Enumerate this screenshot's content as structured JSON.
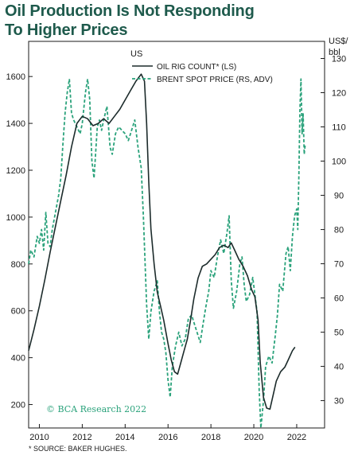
{
  "title_line1": "Oil Production Is Not Responding",
  "title_line2": "To Higher Prices",
  "credit": "© BCA Research 2022",
  "source": "* SOURCE: BAKER HUGHES.",
  "colors": {
    "rig": "#1c2b2b",
    "brent": "#2aa27b",
    "title": "#1e5a4c"
  },
  "chart_data": {
    "type": "line",
    "left_axis": {
      "label": "US",
      "ylim": [
        100,
        1750
      ],
      "ticks": [
        200,
        400,
        600,
        800,
        1000,
        1200,
        1400,
        1600
      ]
    },
    "right_axis": {
      "label": "US$/\nbbl",
      "ylim": [
        22,
        135
      ],
      "ticks": [
        30,
        40,
        50,
        60,
        70,
        80,
        90,
        100,
        110,
        120,
        130
      ]
    },
    "x_axis": {
      "range": [
        2009.5,
        2023.3
      ],
      "ticks": [
        "2010",
        "2012",
        "2014",
        "2016",
        "2018",
        "2020",
        "2022"
      ]
    },
    "grid": false,
    "legend_position": "top",
    "series": [
      {
        "name": "OIL RIG COUNT* (LS)",
        "axis": "left",
        "style": "solid",
        "points": [
          [
            2009.5,
            430
          ],
          [
            2009.75,
            520
          ],
          [
            2010.0,
            620
          ],
          [
            2010.25,
            730
          ],
          [
            2010.5,
            850
          ],
          [
            2010.75,
            960
          ],
          [
            2011.0,
            1070
          ],
          [
            2011.25,
            1180
          ],
          [
            2011.5,
            1300
          ],
          [
            2011.75,
            1400
          ],
          [
            2012.0,
            1430
          ],
          [
            2012.25,
            1420
          ],
          [
            2012.5,
            1390
          ],
          [
            2012.75,
            1400
          ],
          [
            2013.0,
            1420
          ],
          [
            2013.25,
            1400
          ],
          [
            2013.5,
            1430
          ],
          [
            2013.75,
            1460
          ],
          [
            2014.0,
            1500
          ],
          [
            2014.25,
            1540
          ],
          [
            2014.5,
            1580
          ],
          [
            2014.75,
            1610
          ],
          [
            2014.9,
            1580
          ],
          [
            2015.0,
            1400
          ],
          [
            2015.1,
            1150
          ],
          [
            2015.2,
            950
          ],
          [
            2015.35,
            800
          ],
          [
            2015.5,
            680
          ],
          [
            2015.65,
            620
          ],
          [
            2015.8,
            560
          ],
          [
            2015.9,
            510
          ],
          [
            2016.0,
            460
          ],
          [
            2016.15,
            390
          ],
          [
            2016.3,
            340
          ],
          [
            2016.45,
            330
          ],
          [
            2016.6,
            380
          ],
          [
            2016.75,
            430
          ],
          [
            2016.9,
            480
          ],
          [
            2017.05,
            560
          ],
          [
            2017.2,
            650
          ],
          [
            2017.4,
            740
          ],
          [
            2017.6,
            790
          ],
          [
            2017.8,
            800
          ],
          [
            2018.0,
            820
          ],
          [
            2018.2,
            840
          ],
          [
            2018.4,
            870
          ],
          [
            2018.6,
            880
          ],
          [
            2018.8,
            870
          ],
          [
            2018.95,
            890
          ],
          [
            2019.1,
            860
          ],
          [
            2019.3,
            820
          ],
          [
            2019.5,
            790
          ],
          [
            2019.7,
            750
          ],
          [
            2019.9,
            690
          ],
          [
            2020.05,
            660
          ],
          [
            2020.2,
            560
          ],
          [
            2020.3,
            380
          ],
          [
            2020.45,
            230
          ],
          [
            2020.6,
            185
          ],
          [
            2020.75,
            180
          ],
          [
            2020.9,
            240
          ],
          [
            2021.05,
            300
          ],
          [
            2021.25,
            340
          ],
          [
            2021.45,
            360
          ],
          [
            2021.6,
            390
          ],
          [
            2021.8,
            430
          ],
          [
            2021.92,
            445
          ]
        ]
      },
      {
        "name": "BRENT SPOT PRICE (RS, ADV)",
        "axis": "right",
        "style": "dashed",
        "points": [
          [
            2009.5,
            70
          ],
          [
            2009.6,
            74
          ],
          [
            2009.75,
            72
          ],
          [
            2009.9,
            78
          ],
          [
            2010.0,
            76
          ],
          [
            2010.1,
            80
          ],
          [
            2010.2,
            74
          ],
          [
            2010.3,
            85
          ],
          [
            2010.4,
            76
          ],
          [
            2010.5,
            75
          ],
          [
            2010.6,
            80
          ],
          [
            2010.75,
            85
          ],
          [
            2010.9,
            90
          ],
          [
            2011.0,
            95
          ],
          [
            2011.1,
            105
          ],
          [
            2011.2,
            114
          ],
          [
            2011.3,
            120
          ],
          [
            2011.4,
            124
          ],
          [
            2011.5,
            114
          ],
          [
            2011.6,
            112
          ],
          [
            2011.75,
            110
          ],
          [
            2011.9,
            108
          ],
          [
            2012.0,
            111
          ],
          [
            2012.15,
            120
          ],
          [
            2012.25,
            124
          ],
          [
            2012.35,
            118
          ],
          [
            2012.45,
            100
          ],
          [
            2012.55,
            95
          ],
          [
            2012.7,
            110
          ],
          [
            2012.8,
            112
          ],
          [
            2012.9,
            109
          ],
          [
            2013.0,
            112
          ],
          [
            2013.15,
            116
          ],
          [
            2013.3,
            104
          ],
          [
            2013.4,
            102
          ],
          [
            2013.55,
            108
          ],
          [
            2013.7,
            110
          ],
          [
            2013.85,
            109
          ],
          [
            2014.0,
            108
          ],
          [
            2014.15,
            106
          ],
          [
            2014.3,
            109
          ],
          [
            2014.45,
            112
          ],
          [
            2014.6,
            104
          ],
          [
            2014.75,
            98
          ],
          [
            2014.85,
            84
          ],
          [
            2015.0,
            58
          ],
          [
            2015.1,
            48
          ],
          [
            2015.2,
            56
          ],
          [
            2015.35,
            62
          ],
          [
            2015.5,
            65
          ],
          [
            2015.6,
            56
          ],
          [
            2015.7,
            50
          ],
          [
            2015.8,
            48
          ],
          [
            2015.9,
            44
          ],
          [
            2016.0,
            36
          ],
          [
            2016.1,
            31
          ],
          [
            2016.2,
            40
          ],
          [
            2016.35,
            46
          ],
          [
            2016.5,
            50
          ],
          [
            2016.65,
            46
          ],
          [
            2016.8,
            48
          ],
          [
            2016.95,
            54
          ],
          [
            2017.1,
            55
          ],
          [
            2017.25,
            52
          ],
          [
            2017.4,
            49
          ],
          [
            2017.5,
            47
          ],
          [
            2017.6,
            51
          ],
          [
            2017.75,
            57
          ],
          [
            2017.9,
            62
          ],
          [
            2018.0,
            68
          ],
          [
            2018.15,
            66
          ],
          [
            2018.3,
            72
          ],
          [
            2018.45,
            77
          ],
          [
            2018.6,
            73
          ],
          [
            2018.75,
            79
          ],
          [
            2018.85,
            84
          ],
          [
            2018.95,
            65
          ],
          [
            2019.05,
            57
          ],
          [
            2019.2,
            62
          ],
          [
            2019.35,
            70
          ],
          [
            2019.45,
            72
          ],
          [
            2019.55,
            64
          ],
          [
            2019.65,
            59
          ],
          [
            2019.8,
            61
          ],
          [
            2019.95,
            66
          ],
          [
            2020.05,
            61
          ],
          [
            2020.15,
            56
          ],
          [
            2020.25,
            33
          ],
          [
            2020.33,
            22
          ],
          [
            2020.45,
            30
          ],
          [
            2020.55,
            40
          ],
          [
            2020.7,
            43
          ],
          [
            2020.85,
            41
          ],
          [
            2021.0,
            49
          ],
          [
            2021.1,
            55
          ],
          [
            2021.2,
            64
          ],
          [
            2021.35,
            62
          ],
          [
            2021.5,
            73
          ],
          [
            2021.6,
            75
          ],
          [
            2021.7,
            68
          ],
          [
            2021.8,
            78
          ],
          [
            2021.9,
            84
          ],
          [
            2022.0,
            86
          ],
          [
            2022.05,
            80
          ],
          [
            2022.1,
            96
          ],
          [
            2022.15,
            115
          ],
          [
            2022.2,
            124
          ],
          [
            2022.25,
            108
          ],
          [
            2022.3,
            114
          ],
          [
            2022.35,
            102
          ],
          [
            2022.4,
            105
          ]
        ]
      }
    ]
  }
}
